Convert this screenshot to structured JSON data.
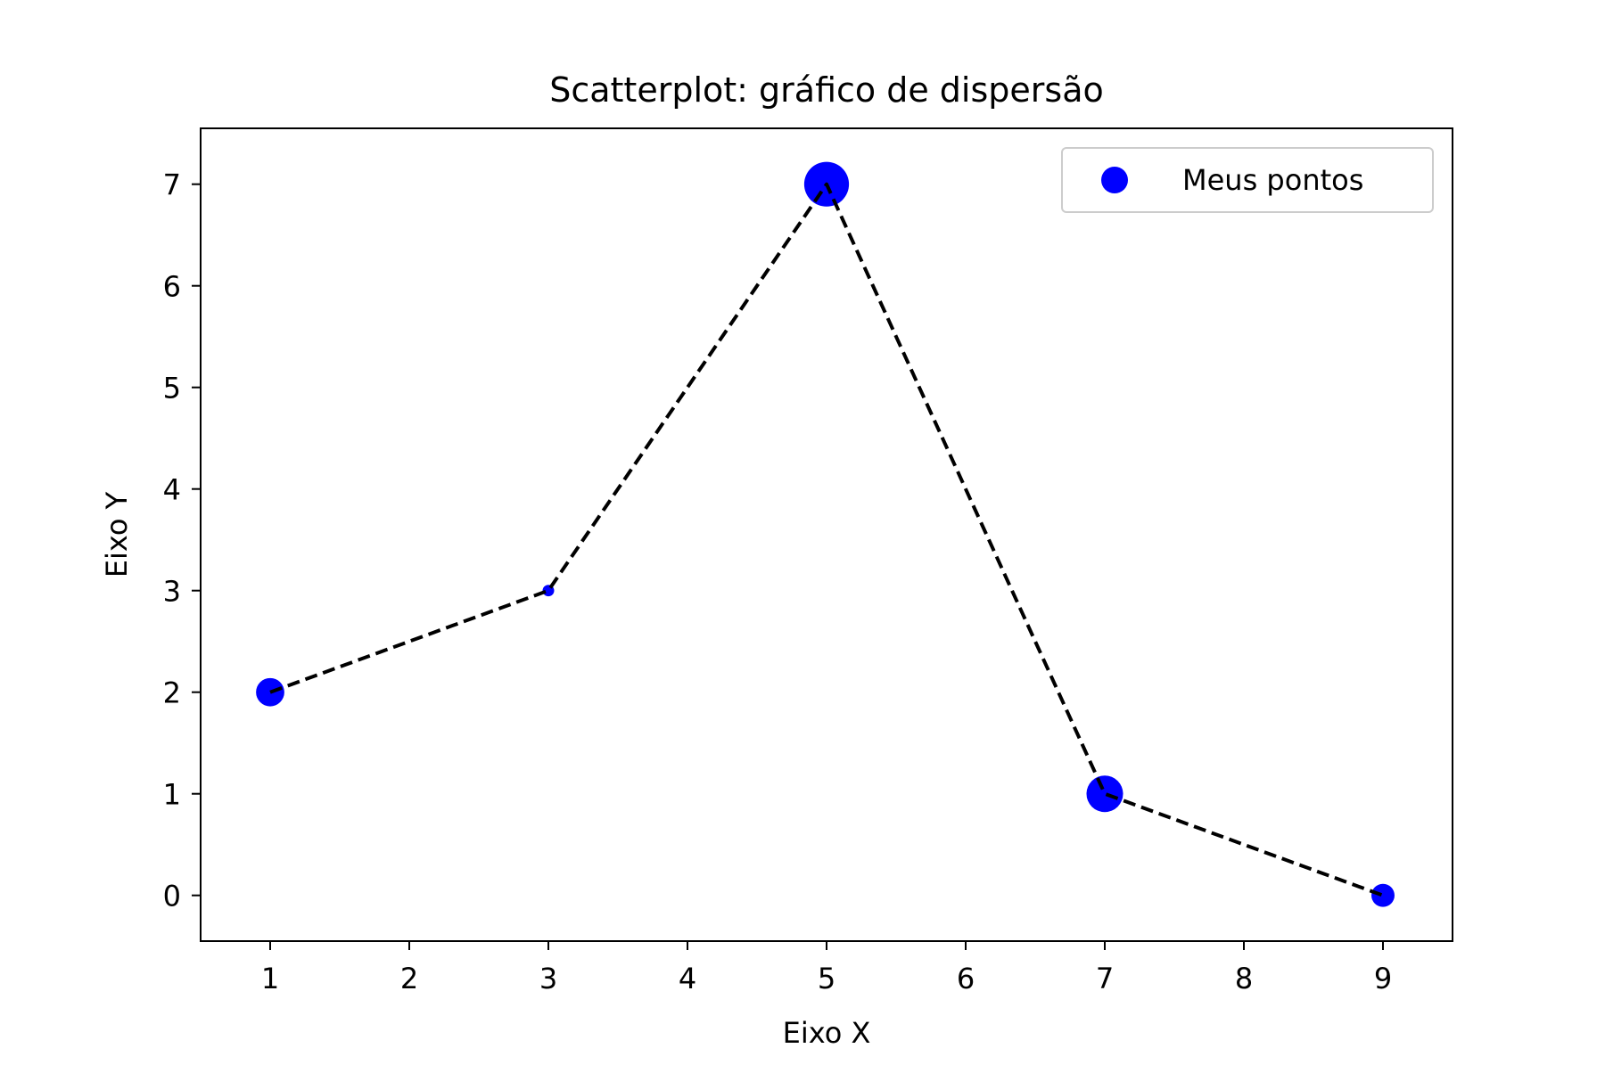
{
  "chart_data": {
    "type": "scatter",
    "title": "Scatterplot: gráfico de dispersão",
    "xlabel": "Eixo X",
    "ylabel": "Eixo Y",
    "xlim": [
      0.5,
      9.5
    ],
    "ylim": [
      -0.45,
      7.55
    ],
    "x_ticks": [
      1,
      2,
      3,
      4,
      5,
      6,
      7,
      8,
      9
    ],
    "y_ticks": [
      0,
      1,
      2,
      3,
      4,
      5,
      6,
      7
    ],
    "grid": false,
    "legend_position": "top-right",
    "series": [
      {
        "name": "Meus pontos",
        "color": "#0000ff",
        "points": [
          {
            "x": 1,
            "y": 2,
            "size": 60
          },
          {
            "x": 3,
            "y": 3,
            "size": 10
          },
          {
            "x": 5,
            "y": 7,
            "size": 150
          },
          {
            "x": 7,
            "y": 1,
            "size": 100
          },
          {
            "x": 9,
            "y": 0,
            "size": 40
          }
        ]
      }
    ],
    "connector_line": {
      "style": "dashed",
      "color": "#000000",
      "points": [
        [
          1,
          2
        ],
        [
          3,
          3
        ],
        [
          5,
          7
        ],
        [
          7,
          1
        ],
        [
          9,
          0
        ]
      ]
    }
  }
}
